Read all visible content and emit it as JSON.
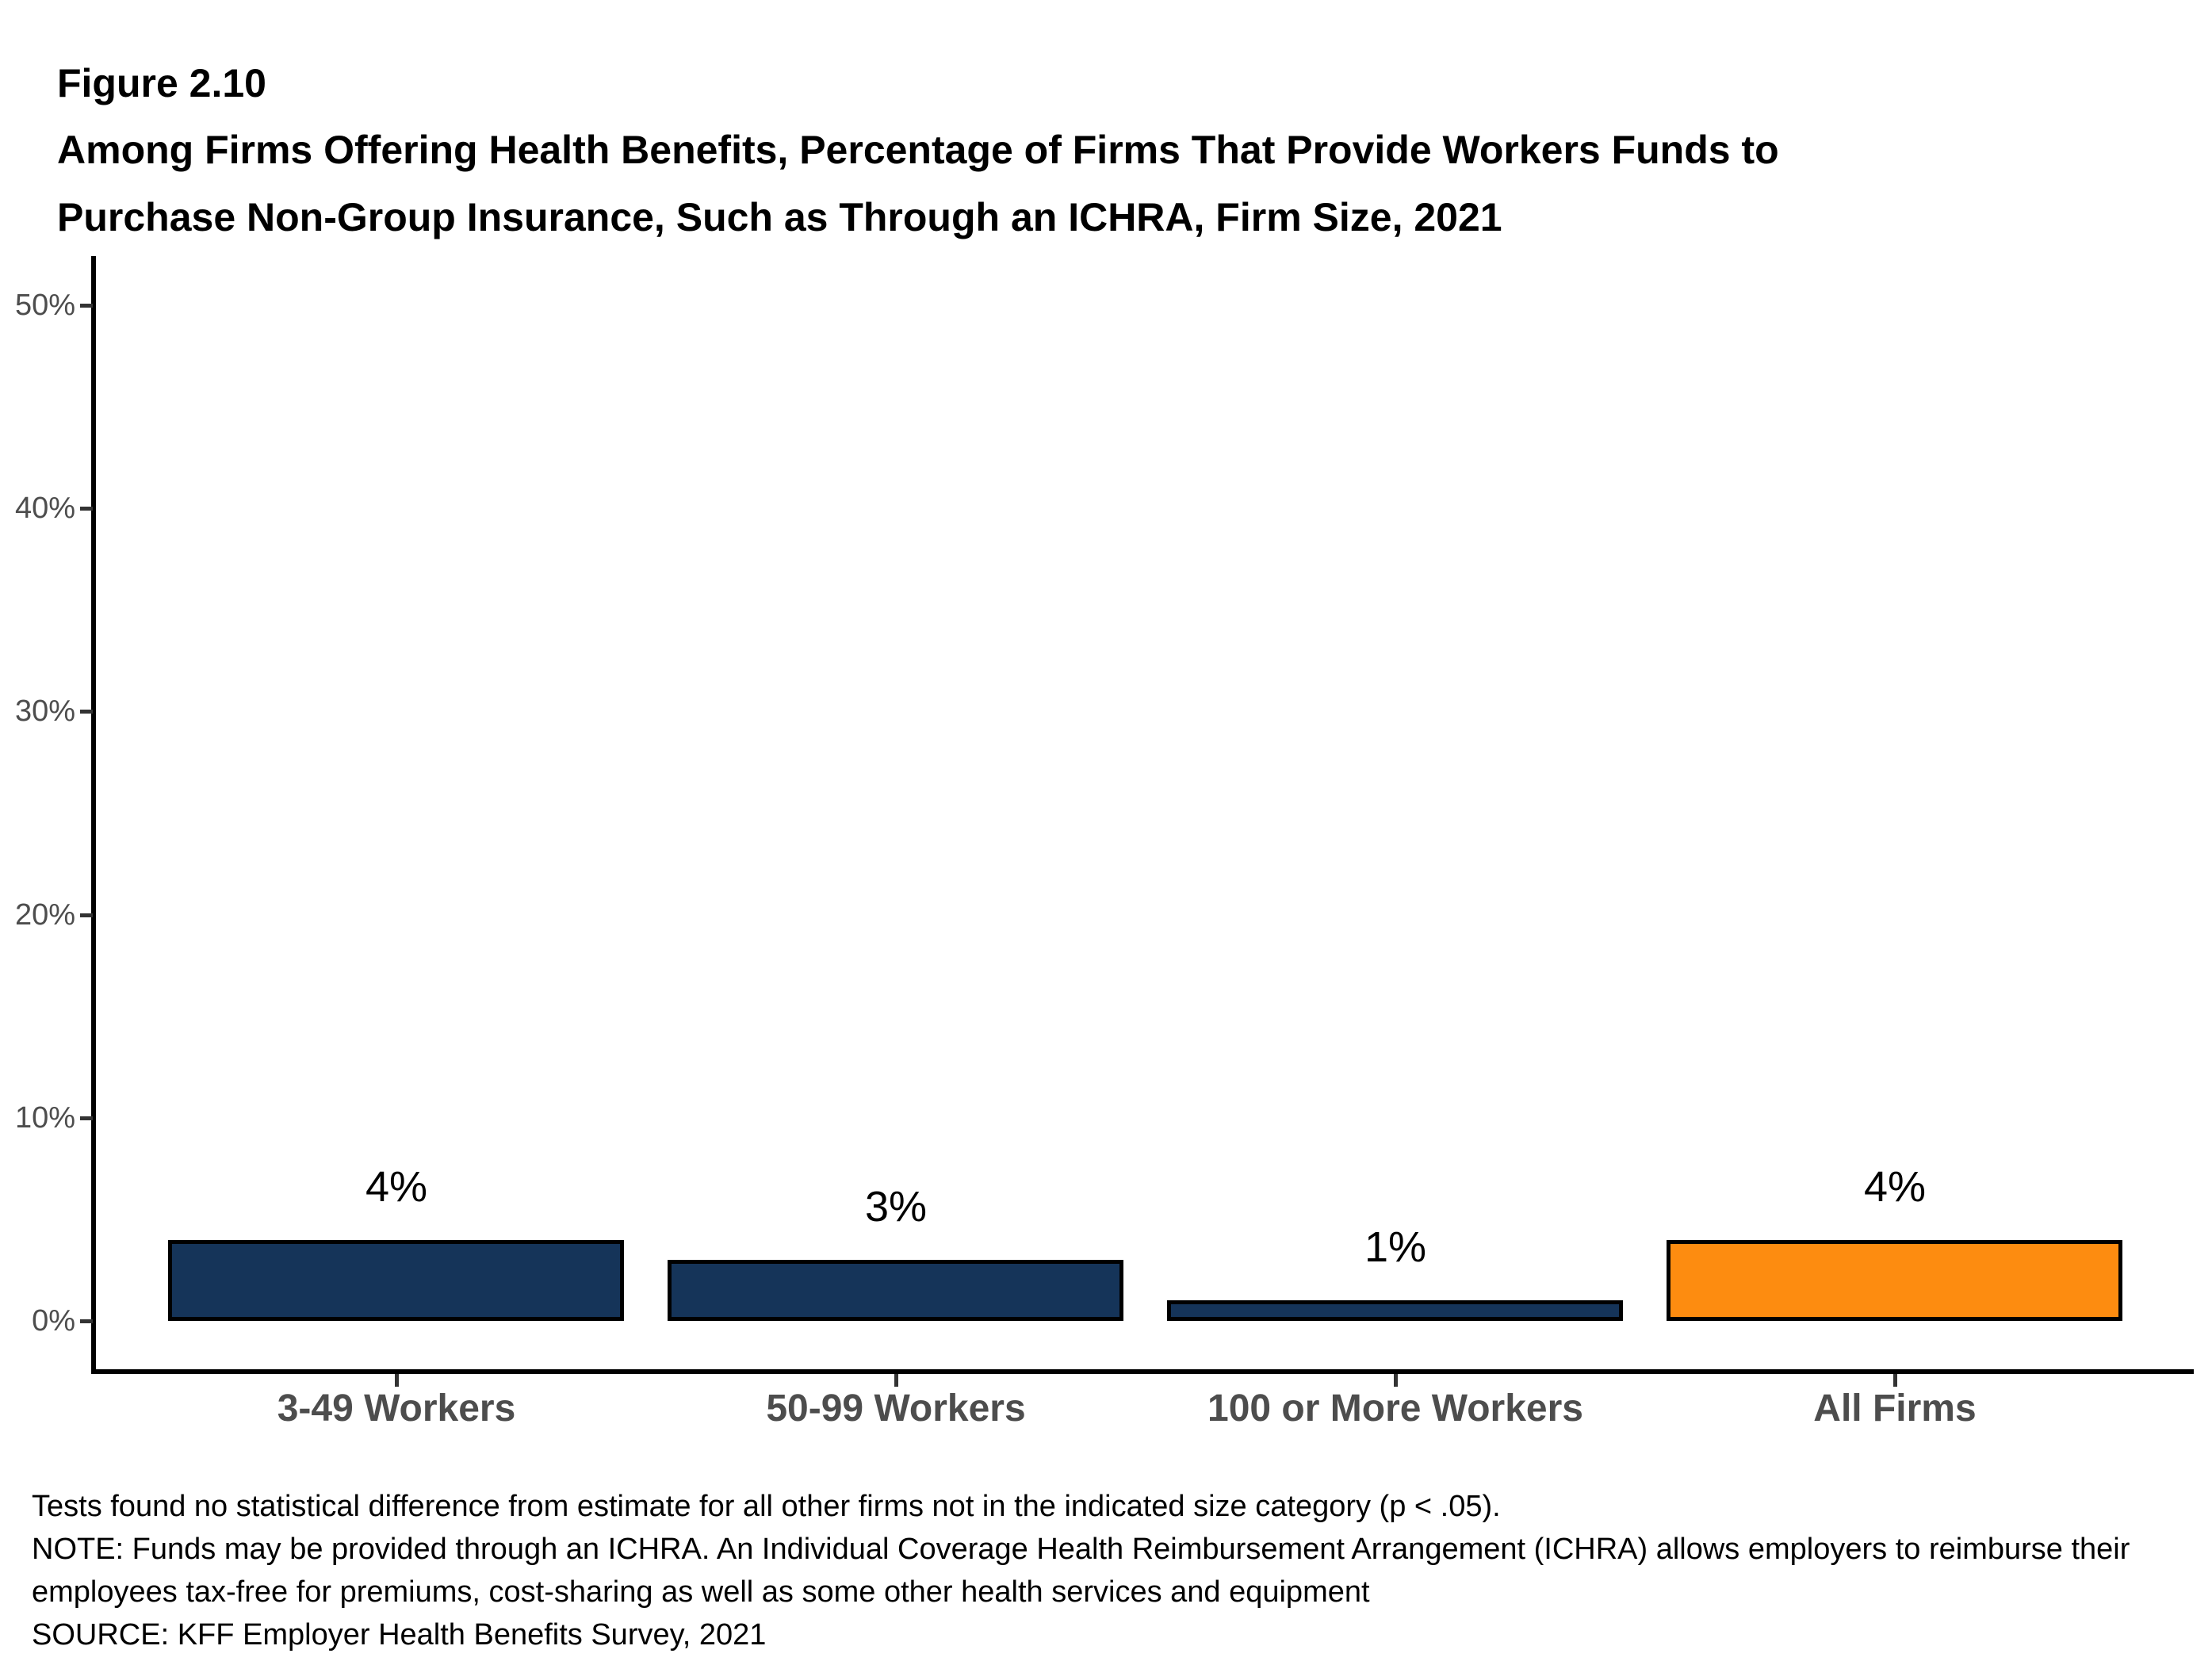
{
  "header": {
    "figure_label": "Figure 2.10",
    "title_line1": "Among Firms Offering Health Benefits, Percentage of Firms That Provide Workers Funds to",
    "title_line2": "Purchase Non-Group Insurance, Such as Through an ICHRA, Firm Size, 2021"
  },
  "chart_data": {
    "type": "bar",
    "title": "Among Firms Offering Health Benefits, Percentage of Firms That Provide Workers Funds to Purchase Non-Group Insurance, Such as Through an ICHRA, Firm Size, 2021",
    "categories": [
      "3-49 Workers",
      "50-99 Workers",
      "100 or More Workers",
      "All Firms"
    ],
    "values": [
      4,
      3,
      1,
      4
    ],
    "value_labels": [
      "4%",
      "3%",
      "1%",
      "4%"
    ],
    "bar_colors": [
      "#153459",
      "#153459",
      "#153459",
      "#FD8C10"
    ],
    "bar_border_color": "#000000",
    "xlabel": "",
    "ylabel": "",
    "ylim": [
      0,
      50
    ],
    "y_ticks": [
      {
        "value": 0,
        "label": "0%"
      },
      {
        "value": 10,
        "label": "10%"
      },
      {
        "value": 20,
        "label": "20%"
      },
      {
        "value": 30,
        "label": "30%"
      },
      {
        "value": 40,
        "label": "40%"
      },
      {
        "value": 50,
        "label": "50%"
      }
    ],
    "grid": false,
    "legend": "none"
  },
  "colors": {
    "navy_bar": "#153459",
    "orange_bar": "#FD8C10",
    "axis_line": "#000000",
    "tick_mark": "#333333",
    "axis_label_gray": "#4d4d4d",
    "value_label": "#000000",
    "background": "#ffffff"
  },
  "footer": {
    "lines": [
      "Tests found no statistical difference from estimate for all other firms not in the indicated size category (p < .05).",
      "NOTE: Funds may be provided through an ICHRA. An Individual Coverage Health Reimbursement Arrangement (ICHRA) allows employers to reimburse their",
      "employees tax-free for premiums, cost-sharing as well as some other health services and equipment",
      "SOURCE: KFF Employer Health Benefits Survey, 2021"
    ]
  }
}
